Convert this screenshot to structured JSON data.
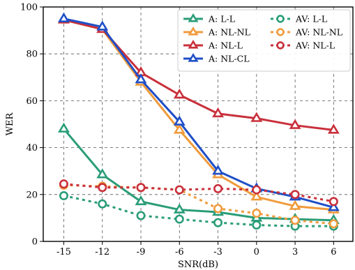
{
  "chart_data": {
    "type": "line",
    "title": "",
    "xlabel": "SNR(dB)",
    "ylabel": "WER",
    "x": [
      -15,
      -12,
      -9,
      -6,
      -3,
      0,
      3,
      6
    ],
    "x_tick_labels": [
      "-15",
      "-12",
      "-9",
      "-6",
      "-3",
      "0",
      "3",
      "6"
    ],
    "ylim": [
      0,
      100
    ],
    "y_ticks": [
      0,
      20,
      40,
      60,
      80,
      100
    ],
    "y_tick_labels": [
      "0",
      "20",
      "40",
      "60",
      "80",
      "100"
    ],
    "grid": true,
    "legend_position": "top-right",
    "series": [
      {
        "name": "A: L-L",
        "color": "#2a9d78",
        "style": "solid",
        "marker": "triangle",
        "values": [
          48,
          28.5,
          17,
          13.5,
          12.5,
          10,
          9.5,
          9
        ]
      },
      {
        "name": "A: NL-NL",
        "color": "#f09b3c",
        "style": "solid",
        "marker": "triangle",
        "values": [
          94.5,
          90.5,
          68,
          47.5,
          28.5,
          19,
          15,
          13.5
        ]
      },
      {
        "name": "A: NL-L",
        "color": "#c9303b",
        "style": "solid",
        "marker": "triangle",
        "values": [
          94.5,
          90.5,
          72,
          62.5,
          54.5,
          52.5,
          49.5,
          47.5
        ]
      },
      {
        "name": "A: NL-CL",
        "color": "#1f4fc7",
        "style": "solid",
        "marker": "triangle",
        "values": [
          95,
          91.5,
          69,
          51,
          30,
          22.5,
          19,
          14.5
        ]
      },
      {
        "name": "AV: L-L",
        "color": "#2a9d78",
        "style": "dotted",
        "marker": "circle",
        "values": [
          19.5,
          16,
          11,
          9.5,
          8,
          7,
          6.5,
          6.5
        ]
      },
      {
        "name": "AV: NL-NL",
        "color": "#f09b3c",
        "style": "dotted",
        "marker": "circle",
        "values": [
          24,
          23.5,
          23,
          22,
          14,
          12,
          9,
          7.5
        ]
      },
      {
        "name": "AV: NL-L",
        "color": "#c9303b",
        "style": "dotted",
        "marker": "circle",
        "values": [
          24.5,
          23,
          23,
          22,
          22.5,
          22,
          20,
          17
        ]
      }
    ],
    "legend_columns": [
      [
        "A: L-L",
        "A: NL-NL",
        "A: NL-L",
        "A: NL-CL"
      ],
      [
        "AV: L-L",
        "AV: NL-NL",
        "AV: NL-L"
      ]
    ]
  }
}
